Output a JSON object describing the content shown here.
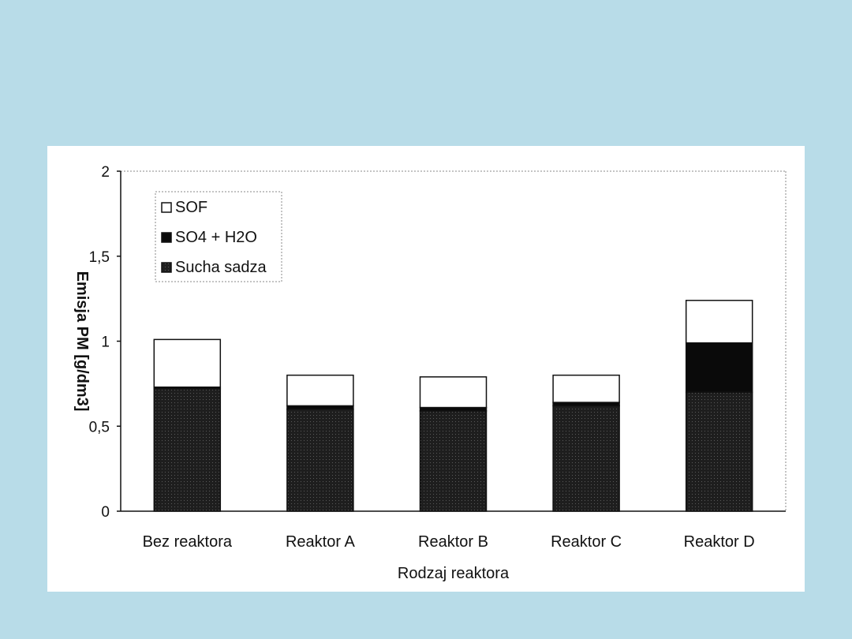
{
  "chart_data": {
    "type": "bar",
    "stacked": true,
    "xlabel": "Rodzaj reaktora",
    "ylabel": "Emisja PM [g/dm3]",
    "ylim": [
      0,
      2
    ],
    "yticks": [
      0,
      0.5,
      1,
      1.5,
      2
    ],
    "ytick_labels": [
      "0",
      "0,5",
      "1",
      "1,5",
      "2"
    ],
    "categories": [
      "Bez reaktora",
      "Reaktor A",
      "Reaktor B",
      "Reaktor C",
      "Reaktor D"
    ],
    "series": [
      {
        "name": "Sucha sadza",
        "values": [
          0.72,
          0.6,
          0.59,
          0.62,
          0.7
        ],
        "color": "#2b2b2b"
      },
      {
        "name": "SO4 + H2O",
        "values": [
          0.01,
          0.02,
          0.02,
          0.02,
          0.29
        ],
        "color": "#0a0a0a"
      },
      {
        "name": "SOF",
        "values": [
          0.28,
          0.18,
          0.18,
          0.16,
          0.25
        ],
        "color": "#ffffff"
      }
    ],
    "legend_order": [
      "SOF",
      "SO4 + H2O",
      "Sucha sadza"
    ],
    "legend_position": "top-left",
    "grid": false
  }
}
